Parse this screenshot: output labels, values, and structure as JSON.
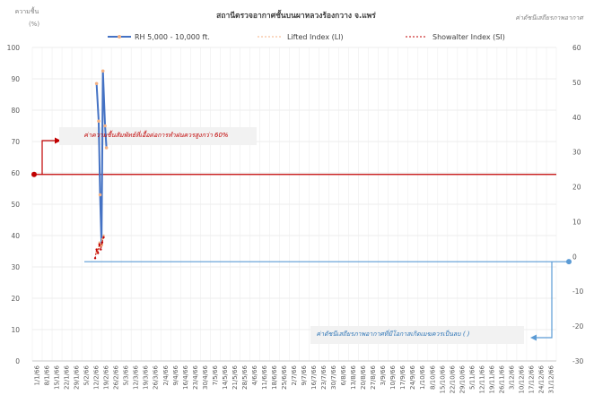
{
  "chart_data": {
    "type": "line",
    "title": "สถานีตรวจอากาศชั้นบนผาหลวงร้องกวาง จ.แพร่",
    "ylabel_left": "ความชื้น",
    "ylabel_left_unit": "(%)",
    "ylabel_right": "ค่าดัชนีเสถียรภาพอากาศ",
    "ylim_left": [
      0,
      100
    ],
    "ylim_right": [
      -30,
      60
    ],
    "left_ticks": [
      0,
      10,
      20,
      30,
      40,
      50,
      60,
      70,
      80,
      90,
      100
    ],
    "right_ticks": [
      -30,
      -20,
      -10,
      0,
      10,
      20,
      30,
      40,
      50,
      60
    ],
    "grid": true,
    "legend_position": "top",
    "categories": [
      "1/1/66",
      "8/1/66",
      "15/1/66",
      "22/1/66",
      "29/1/66",
      "5/2/66",
      "12/2/66",
      "19/2/66",
      "26/2/66",
      "5/3/66",
      "12/3/66",
      "19/3/66",
      "26/3/66",
      "2/4/66",
      "9/4/66",
      "16/4/66",
      "23/4/66",
      "30/4/66",
      "7/5/66",
      "14/5/66",
      "21/5/66",
      "28/5/66",
      "4/6/66",
      "11/6/66",
      "18/6/66",
      "25/6/66",
      "2/7/66",
      "9/7/66",
      "16/7/66",
      "23/7/66",
      "30/7/66",
      "6/8/66",
      "13/8/66",
      "20/8/66",
      "27/8/66",
      "3/9/66",
      "10/9/66",
      "17/9/66",
      "24/9/66",
      "1/10/66",
      "8/10/66",
      "15/10/66",
      "22/10/66",
      "29/10/66",
      "5/11/66",
      "12/11/66",
      "19/11/66",
      "26/11/66",
      "3/12/66",
      "10/12/66",
      "17/12/66",
      "24/12/66",
      "31/12/66"
    ],
    "series": [
      {
        "name": "RH 5,000 - 10,000 ft.",
        "axis": "left",
        "color": "#4472c4",
        "points": [
          [
            42,
            88.5
          ],
          [
            43.5,
            76.5
          ],
          [
            44.5,
            53
          ],
          [
            45.5,
            37
          ],
          [
            46.5,
            92.5
          ],
          [
            48,
            75
          ],
          [
            49,
            68
          ]
        ]
      },
      {
        "name": "Lifted Index (LI)",
        "axis": "right",
        "color": "#f4b183",
        "points": [
          [
            42,
            1
          ],
          [
            43,
            2
          ],
          [
            44,
            4
          ],
          [
            45,
            3
          ],
          [
            46,
            5
          ],
          [
            47,
            6
          ]
        ]
      },
      {
        "name": "Showalter Index (SI)",
        "axis": "right",
        "color": "#c00000",
        "points": [
          [
            41,
            -0.5
          ],
          [
            42,
            2
          ],
          [
            43,
            1
          ],
          [
            44,
            3.5
          ],
          [
            45,
            2
          ],
          [
            46,
            4
          ],
          [
            47,
            5.5
          ]
        ]
      }
    ],
    "reference_lines": [
      {
        "axis": "left",
        "value": 59.5,
        "color": "#c00000"
      },
      {
        "axis": "right",
        "value": -1.5,
        "color": "#5b9bd5"
      }
    ],
    "annotations": [
      {
        "text": "ค่าความชื้นสัมพัทธ์ที่เอื้อต่อการทำฝนควรสูงกว่า 60%",
        "color": "#c00000"
      },
      {
        "text": "ค่าดัชนีเสถียรภาพอากาศที่มีโอกาสเกิดเมฆควรเป็นลบ ( )",
        "color": "#2e75b6"
      }
    ]
  }
}
